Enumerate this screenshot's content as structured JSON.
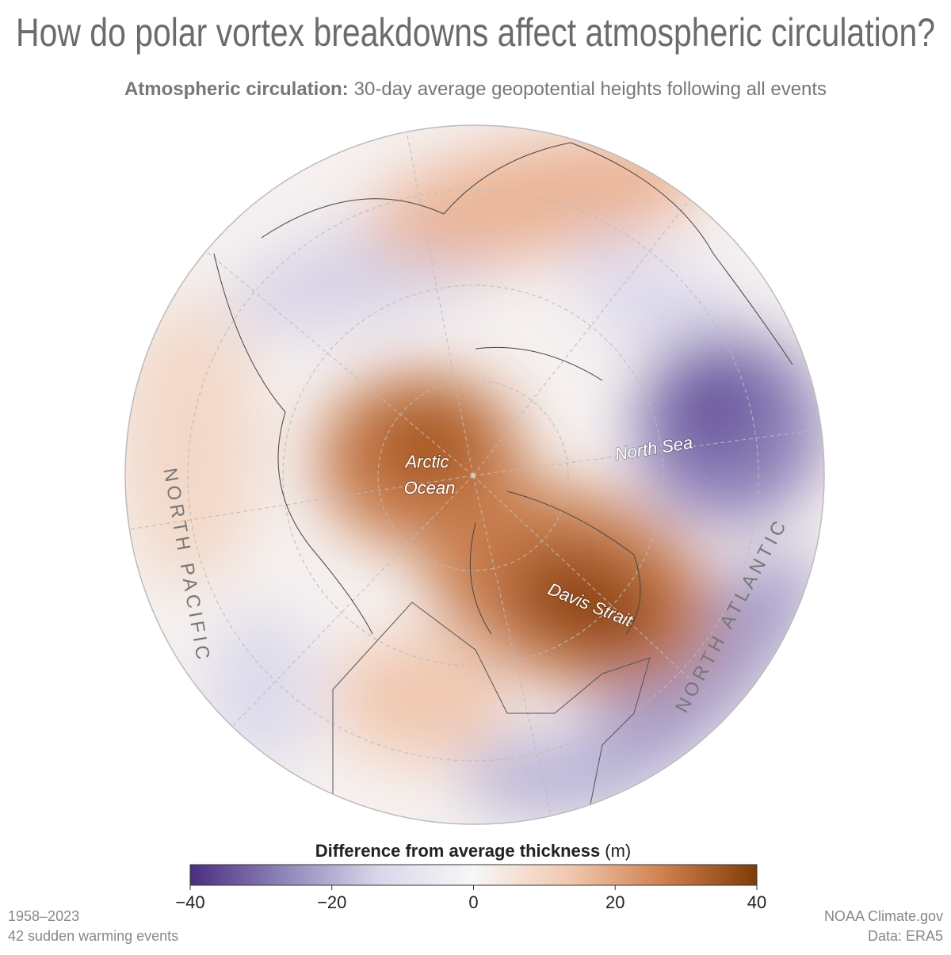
{
  "header": {
    "title": "How do polar vortex breakdowns affect atmospheric circulation?",
    "subtitle_bold": "Atmospheric circulation:",
    "subtitle": "30-day average geopotential heights following all events"
  },
  "map_labels": {
    "arctic_ocean": [
      "Arctic",
      "Ocean"
    ],
    "north_sea": "North Sea",
    "davis_strait": "Davis Strait",
    "north_pacific": "NORTH PACIFIC",
    "north_atlantic": "NORTH ATLANTIC"
  },
  "legend": {
    "title_bold": "Difference from average thickness",
    "unit": "(m)",
    "range": [
      -40,
      40
    ],
    "colors": [
      "#4b2d7f",
      "#8f86b8",
      "#d9d7ea",
      "#f7f7f7",
      "#f1c9b0",
      "#cf8150",
      "#7f3b08"
    ],
    "ticks": [
      {
        "value": -40,
        "label": "−40"
      },
      {
        "value": -20,
        "label": "−20"
      },
      0,
      20,
      40
    ]
  },
  "footer": {
    "years": "1958–2023",
    "events": "42 sudden warming events",
    "source": "NOAA Climate.gov",
    "data": "Data: ERA5"
  }
}
